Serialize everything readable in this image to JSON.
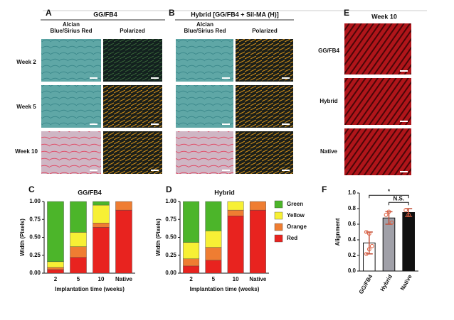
{
  "panels": {
    "A": {
      "letter": "A",
      "title": "GG/FB4",
      "col_header_1": [
        "Alcian",
        "Blue/Sirius Red"
      ],
      "col_header_2": "Polarized",
      "rows": [
        "Week 2",
        "Week 5",
        "Week 10"
      ]
    },
    "B": {
      "letter": "B",
      "title": "Hybrid [GG/FB4 + Sil-MA (H)]",
      "col_header_1": [
        "Alcian",
        "Blue/Sirius Red"
      ],
      "col_header_2": "Polarized"
    },
    "E": {
      "letter": "E",
      "title": "Week 10",
      "rows": [
        "GG/FB4",
        "Hybrid",
        "Native"
      ]
    }
  },
  "chart_data": [
    {
      "panel": "C",
      "type": "stacked-bar",
      "title": "GG/FB4",
      "categories": [
        "2",
        "5",
        "10",
        "Native"
      ],
      "series": [
        {
          "name": "Red",
          "color": "#e8231f",
          "values": [
            0.05,
            0.22,
            0.64,
            0.88
          ]
        },
        {
          "name": "Orange",
          "color": "#ef7d32",
          "values": [
            0.03,
            0.15,
            0.06,
            0.12
          ]
        },
        {
          "name": "Yellow",
          "color": "#f7f035",
          "values": [
            0.08,
            0.2,
            0.25,
            0
          ]
        },
        {
          "name": "Green",
          "color": "#4cb52a",
          "values": [
            0.84,
            0.43,
            0.05,
            0
          ]
        }
      ],
      "ylim": [
        0,
        1
      ],
      "yticks": [
        {
          "value": 0,
          "label": "0.00"
        },
        0.25,
        {
          "value": 0.5,
          "label": "0.50"
        },
        0.75,
        {
          "value": 1,
          "label": "1.00"
        }
      ],
      "y_label": "Width (Pixels)",
      "x_label": "Implantation time (weeks)",
      "legend": false
    },
    {
      "panel": "D",
      "type": "stacked-bar",
      "title": "Hybrid",
      "categories": [
        "2",
        "5",
        "10",
        "Native"
      ],
      "series": [
        {
          "name": "Red",
          "color": "#e8231f",
          "values": [
            0.1,
            0.18,
            0.8,
            0.88
          ]
        },
        {
          "name": "Orange",
          "color": "#ef7d32",
          "values": [
            0.1,
            0.18,
            0.08,
            0.12
          ]
        },
        {
          "name": "Yellow",
          "color": "#f7f035",
          "values": [
            0.23,
            0.23,
            0.12,
            0
          ]
        },
        {
          "name": "Green",
          "color": "#4cb52a",
          "values": [
            0.57,
            0.41,
            0,
            0
          ]
        }
      ],
      "ylim": [
        0,
        1
      ],
      "yticks": [
        {
          "value": 0,
          "label": "0.00"
        },
        0.25,
        {
          "value": 0.5,
          "label": "0.50"
        },
        0.75,
        {
          "value": 1,
          "label": "1.00"
        }
      ],
      "y_label": "Width (Pixels)",
      "x_label": "Implantation time (weeks)",
      "legend": true
    },
    {
      "panel": "F",
      "type": "bar",
      "categories": [
        "GG/FB4",
        "Hybrid",
        "Native"
      ],
      "values": [
        0.36,
        0.68,
        0.75
      ],
      "errors": [
        0.14,
        0.08,
        0.05
      ],
      "colors": [
        "#ffffff",
        "#a0a0a8",
        "#111111"
      ],
      "points": [
        [
          0.5,
          0.48,
          0.32,
          0.22,
          0.28
        ],
        [
          0.72,
          0.76,
          0.62
        ],
        [
          0.78,
          0.72
        ]
      ],
      "point_color": "#e06040",
      "ylim": [
        0,
        1
      ],
      "yticks": [
        {
          "value": 0,
          "label": "0.0"
        },
        0.2,
        0.4,
        0.6,
        0.8,
        {
          "value": 1,
          "label": "1.0"
        }
      ],
      "y_label": "Alignment",
      "annotations": [
        {
          "text": "*",
          "from": 0,
          "to": 2,
          "y": 0.97
        },
        {
          "text": "N.S.",
          "from": 1,
          "to": 2,
          "y": 0.88
        }
      ]
    }
  ]
}
